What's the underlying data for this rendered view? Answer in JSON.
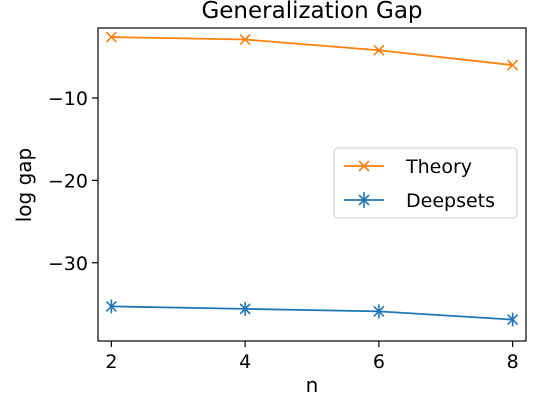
{
  "chart_data": {
    "type": "line",
    "title": "Generalization Gap",
    "xlabel": "n",
    "ylabel": "log gap",
    "x": [
      2,
      4,
      6,
      8
    ],
    "xticks": [
      "2",
      "4",
      "6",
      "8"
    ],
    "yticks": [
      "−10",
      "−20",
      "−30"
    ],
    "xlim": [
      1.8,
      8.2
    ],
    "ylim": [
      -39.5,
      -1.5
    ],
    "grid": false,
    "legend_position": "center-right",
    "series": [
      {
        "name": "Theory",
        "color": "#ff7f0e",
        "marker": "x",
        "values": [
          -2.6,
          -2.9,
          -4.2,
          -6.0
        ]
      },
      {
        "name": "Deepsets",
        "color": "#1f77b4",
        "marker": "x-errorbar",
        "values": [
          -35.3,
          -35.6,
          -35.9,
          -36.9
        ]
      }
    ]
  }
}
